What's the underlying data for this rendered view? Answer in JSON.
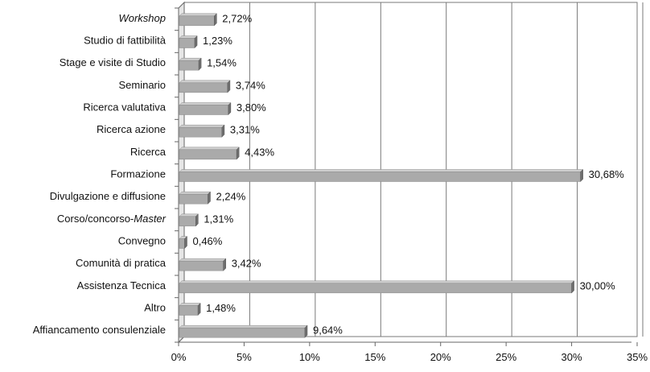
{
  "chart_data": {
    "type": "bar",
    "orientation": "horizontal",
    "categories": [
      "Workshop",
      "Studio di fattibilità",
      "Stage e visite di Studio",
      "Seminario",
      "Ricerca valutativa",
      "Ricerca azione",
      "Ricerca",
      "Formazione",
      "Divulgazione e diffusione",
      "Corso/concorso-Master",
      "Convegno",
      "Comunità di pratica",
      "Assistenza Tecnica",
      "Altro",
      "Affiancamento consulenziale"
    ],
    "category_parts": [
      [
        {
          "t": "Workshop",
          "i": true
        }
      ],
      [
        {
          "t": "Studio di fattibilità",
          "i": false
        }
      ],
      [
        {
          "t": "Stage e visite di Studio",
          "i": false
        }
      ],
      [
        {
          "t": "Seminario",
          "i": false
        }
      ],
      [
        {
          "t": "Ricerca valutativa",
          "i": false
        }
      ],
      [
        {
          "t": "Ricerca azione",
          "i": false
        }
      ],
      [
        {
          "t": "Ricerca",
          "i": false
        }
      ],
      [
        {
          "t": "Formazione",
          "i": false
        }
      ],
      [
        {
          "t": "Divulgazione e diffusione",
          "i": false
        }
      ],
      [
        {
          "t": "Corso/concorso-",
          "i": false
        },
        {
          "t": "Master",
          "i": true
        }
      ],
      [
        {
          "t": "Convegno",
          "i": false
        }
      ],
      [
        {
          "t": "Comunità di pratica",
          "i": false
        }
      ],
      [
        {
          "t": "Assistenza Tecnica",
          "i": false
        }
      ],
      [
        {
          "t": "Altro",
          "i": false
        }
      ],
      [
        {
          "t": "Affiancamento consulenziale",
          "i": false
        }
      ]
    ],
    "values": [
      2.72,
      1.23,
      1.54,
      3.74,
      3.8,
      3.31,
      4.43,
      30.68,
      2.24,
      1.31,
      0.46,
      3.42,
      30.0,
      1.48,
      9.64
    ],
    "data_labels": [
      "2,72%",
      "1,23%",
      "1,54%",
      "3,74%",
      "3,80%",
      "3,31%",
      "4,43%",
      "30,68%",
      "2,24%",
      "1,31%",
      "0,46%",
      "3,42%",
      "30,00%",
      "1,48%",
      "9,64%"
    ],
    "xlim": [
      0,
      35
    ],
    "x_ticks": [
      0,
      5,
      10,
      15,
      20,
      25,
      30,
      35
    ],
    "x_tick_labels": [
      "0%",
      "5%",
      "10%",
      "15%",
      "20%",
      "25%",
      "30%",
      "35%"
    ],
    "title": "",
    "xlabel": "",
    "ylabel": "",
    "grid": "vertical",
    "legend": "none",
    "colors": {
      "bar_fill": "#aaaaaa",
      "bar_top": "#cfcfcf",
      "bar_side": "#6e6e6e",
      "grid": "#7a7a7a",
      "axis": "#666666",
      "text": "#111111"
    }
  }
}
